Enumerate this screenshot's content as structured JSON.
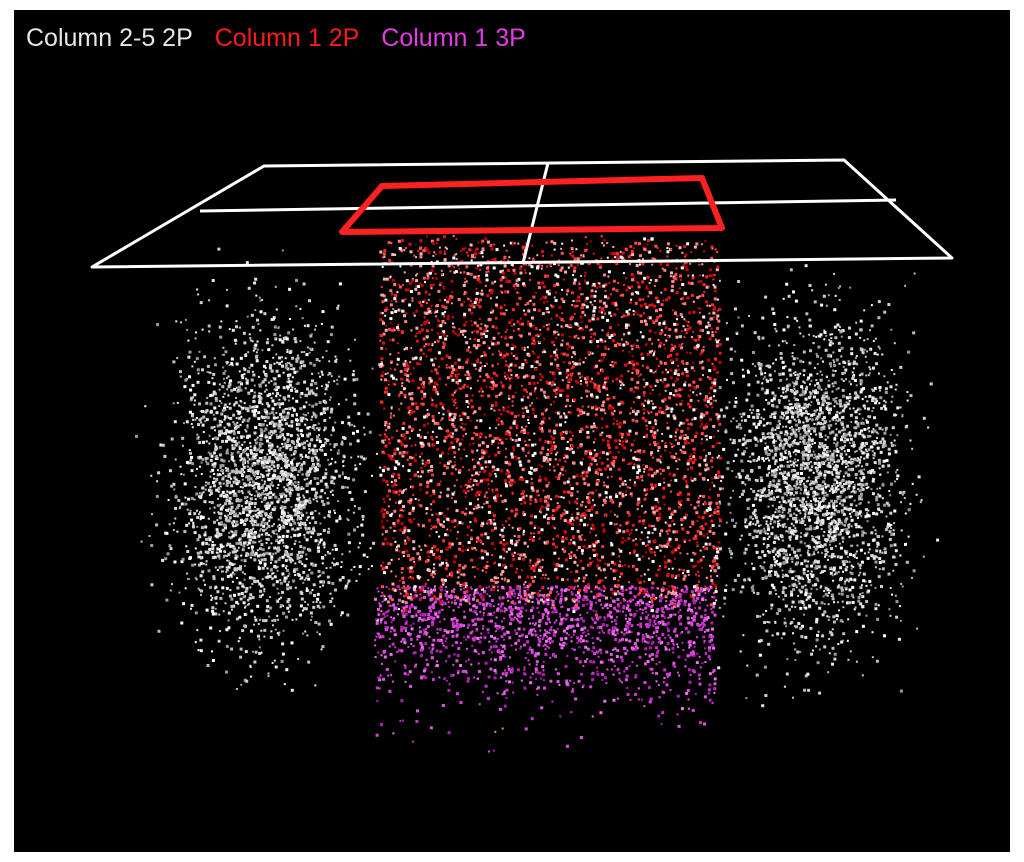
{
  "legend": {
    "items": [
      {
        "label": "Column 2-5 2P",
        "color": "#e6e6e6"
      },
      {
        "label": "Column 1 2P",
        "color": "#ff1a1a"
      },
      {
        "label": "Column 1 3P",
        "color": "#e23de2"
      }
    ]
  },
  "colors": {
    "background": "#000000",
    "grid_outline": "#ffffff",
    "column1_outline": "#ff2020"
  }
}
